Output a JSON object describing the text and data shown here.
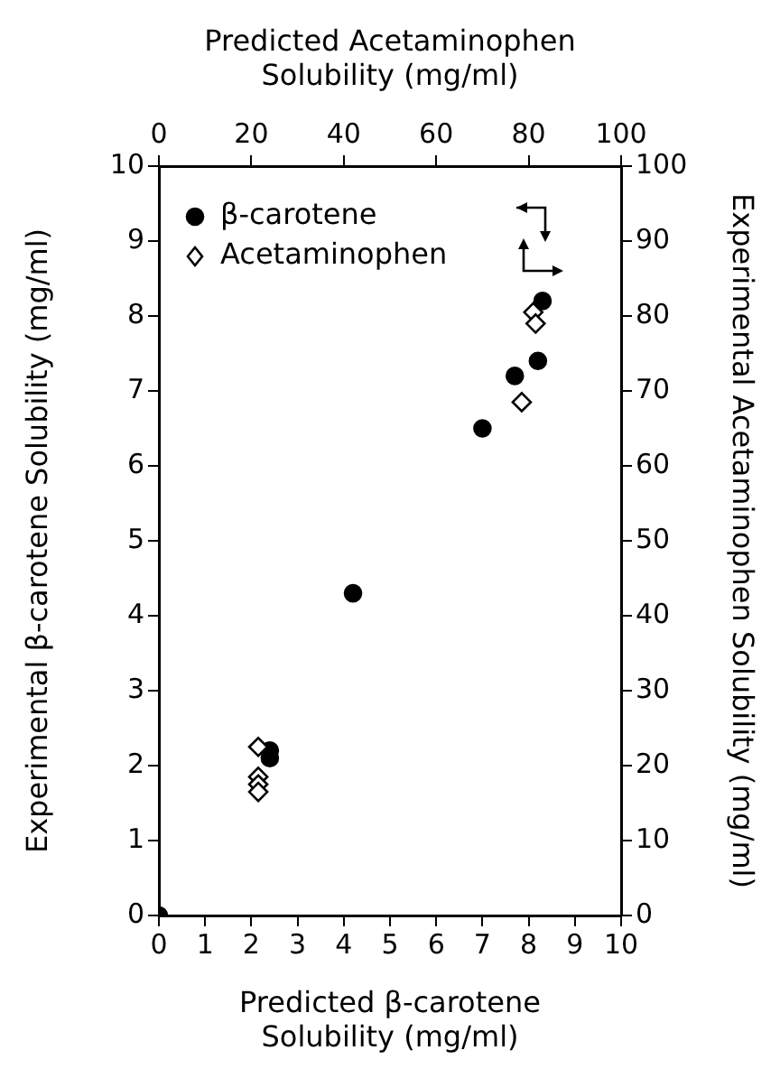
{
  "chart_data": [
    {
      "type": "scatter",
      "xlabel": "Predicted β-carotene Solubility (mg/ml)",
      "ylabel": "Experimental β-carotene Solubility (mg/ml)",
      "xlim": [
        0,
        10
      ],
      "xticks": [
        0,
        1,
        2,
        3,
        4,
        5,
        6,
        7,
        8,
        9,
        10
      ],
      "ylim": [
        0,
        10
      ],
      "yticks": [
        0,
        1,
        2,
        3,
        4,
        5,
        6,
        7,
        8,
        9,
        10
      ],
      "legend": "top left",
      "grid": false,
      "series": [
        {
          "name": "β-carotene",
          "color": "#000000",
          "marker": "circle",
          "x": [
            0,
            2.4,
            2.4,
            4.2,
            7.0,
            7.7,
            8.2,
            8.3
          ],
          "values": [
            0,
            2.2,
            2.1,
            4.3,
            6.5,
            7.2,
            7.4,
            8.2
          ]
        }
      ]
    },
    {
      "type": "scatter",
      "xlabel": "Predicted Acetaminophen Solubility (mg/ml)",
      "ylabel": "Experimental Acetaminophen Solubility (mg/ml)",
      "xlim": [
        0,
        100
      ],
      "xticks": [
        0,
        20,
        40,
        60,
        80,
        100
      ],
      "ylim": [
        0,
        100
      ],
      "yticks": [
        0,
        10,
        20,
        30,
        40,
        50,
        60,
        70,
        80,
        90,
        100
      ],
      "legend": "top left",
      "grid": false,
      "series": [
        {
          "name": "Acetaminophen",
          "color": "#000000",
          "marker": "diamond",
          "x": [
            21.5,
            21.5,
            21.5,
            21.5,
            78.5,
            81,
            81.5
          ],
          "values": [
            22.5,
            18.5,
            17.5,
            16.5,
            68.5,
            80.5,
            79
          ]
        }
      ]
    }
  ]
}
